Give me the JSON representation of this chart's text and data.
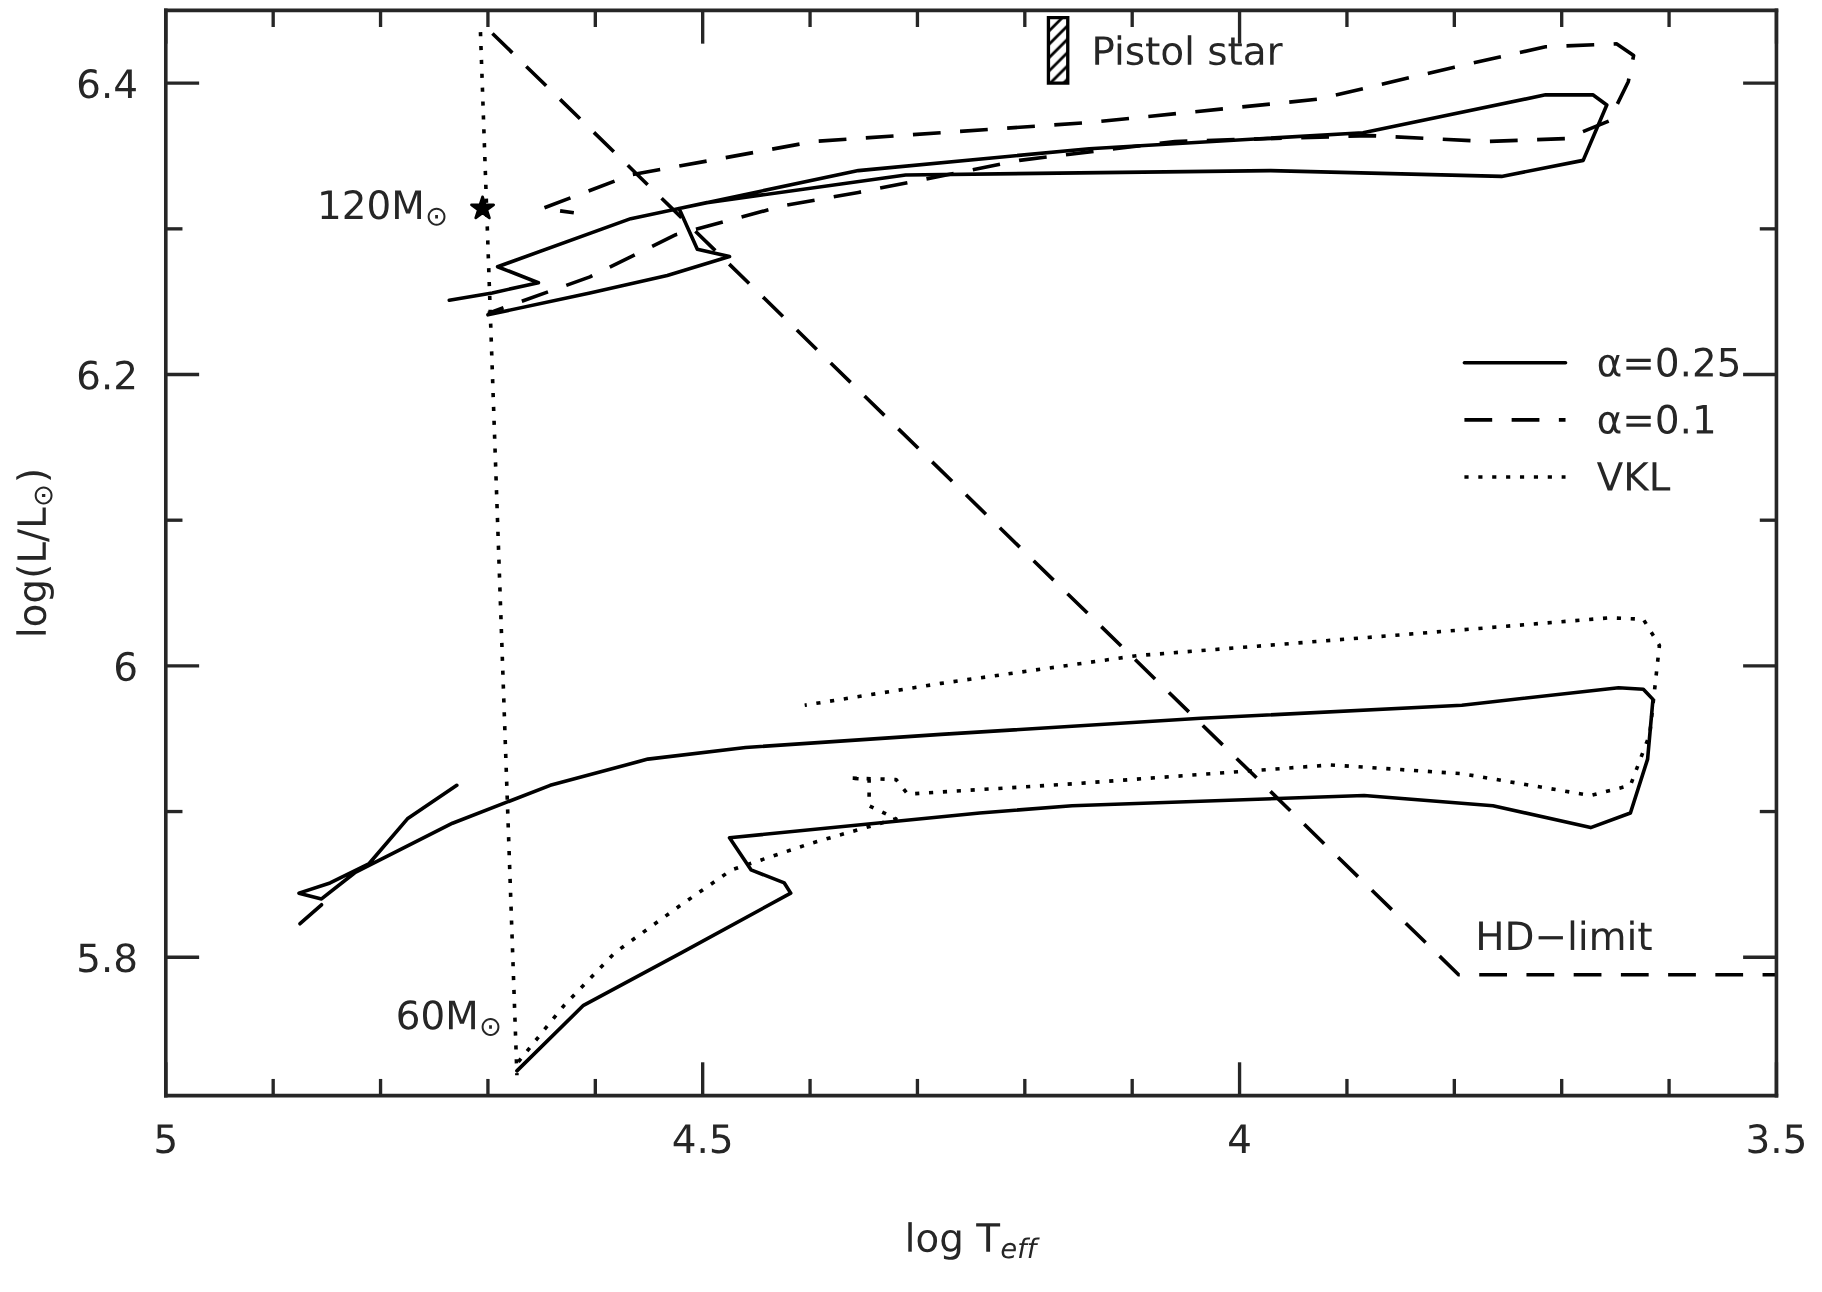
{
  "chart_data": {
    "type": "line",
    "xlabel": "log T$_{eff}$",
    "ylabel": "log(L/L$_{⊙}$)",
    "xlim": [
      5,
      3.5
    ],
    "ylim": [
      5.705,
      6.45
    ],
    "xticks": [
      5,
      4.5,
      4,
      3.5
    ],
    "yticks": [
      5.8,
      6,
      6.2,
      6.4
    ],
    "grid": false,
    "legend": "right",
    "series": [
      {
        "name": "α=0.25",
        "line_style": "solid",
        "color": "#000000",
        "x": [
          4.7,
          4.605,
          4.533,
          4.475,
          4.505,
          4.522,
          4.496,
          4.311,
          3.971,
          3.756,
          3.68,
          3.658,
          3.671,
          3.715,
          3.885,
          4.14,
          4.355,
          4.567,
          4.691,
          4.653,
          4.696,
          4.736
        ],
        "values": [
          6.241,
          6.256,
          6.268,
          6.281,
          6.286,
          6.314,
          6.318,
          6.337,
          6.34,
          6.336,
          6.347,
          6.385,
          6.392,
          6.392,
          6.366,
          6.355,
          6.34,
          6.307,
          6.274,
          6.263,
          6.256,
          6.251
        ]
      },
      {
        "name": "α=0.1",
        "line_style": "dashed",
        "color": "#000000",
        "x": [
          4.7,
          4.605,
          4.525,
          4.424,
          4.355,
          4.205,
          4.06,
          3.878,
          3.769,
          3.696,
          3.656,
          3.638,
          3.633,
          3.649,
          3.715,
          3.8,
          3.927,
          4.14,
          4.396,
          4.567,
          4.649,
          4.62
        ],
        "values": [
          6.242,
          6.267,
          6.296,
          6.316,
          6.325,
          6.347,
          6.36,
          6.364,
          6.36,
          6.362,
          6.374,
          6.401,
          6.419,
          6.427,
          6.425,
          6.411,
          6.389,
          6.373,
          6.36,
          6.337,
          6.314,
          6.311
        ]
      },
      {
        "name": "VKL",
        "line_style": "dotted",
        "color": "#000000",
        "x": [
          4.673,
          4.629,
          4.582,
          4.52,
          4.473,
          4.4,
          4.32,
          4.345,
          4.345,
          4.364,
          4.32,
          4.309,
          4.156,
          3.915,
          3.793,
          3.673,
          3.636,
          3.618,
          3.609,
          3.624,
          3.655,
          3.855,
          4.096,
          4.278,
          4.405
        ],
        "values": [
          5.727,
          5.767,
          5.803,
          5.836,
          5.86,
          5.878,
          5.895,
          5.904,
          5.922,
          5.923,
          5.922,
          5.912,
          5.919,
          5.932,
          5.926,
          5.911,
          5.918,
          5.953,
          6.014,
          6.032,
          6.033,
          6.021,
          6.007,
          5.988,
          5.973
        ]
      },
      {
        "type": "line",
        "line_style": "solid",
        "color": "#000000",
        "x": [
          4.673,
          4.611,
          4.52,
          4.418,
          4.424,
          4.455,
          4.475,
          4.242,
          4.156,
          3.884,
          3.764,
          3.673,
          3.636,
          3.62,
          3.615,
          3.624,
          3.647,
          3.793,
          4.036,
          4.278,
          4.46,
          4.551,
          4.642,
          4.733,
          4.824,
          4.855,
          4.876,
          4.847,
          4.811,
          4.775,
          4.729,
          null,
          4.875,
          4.855
        ],
        "values": [
          5.722,
          5.767,
          5.803,
          5.844,
          5.851,
          5.86,
          5.882,
          5.899,
          5.904,
          5.911,
          5.904,
          5.889,
          5.899,
          5.936,
          5.977,
          5.984,
          5.985,
          5.973,
          5.964,
          5.953,
          5.944,
          5.936,
          5.918,
          5.892,
          5.858,
          5.84,
          5.844,
          5.851,
          5.864,
          5.895,
          5.918,
          null,
          5.823,
          5.836
        ]
      },
      {
        "type": "line",
        "line_style": "dotted",
        "color": "#000000",
        "x": [
          4.707,
          4.673
        ],
        "values": [
          6.436,
          5.719
        ]
      },
      {
        "type": "line",
        "line_style": "dashed",
        "color": "#000000",
        "x": [
          4.704,
          3.796,
          3.5
        ],
        "values": [
          6.44,
          5.788,
          5.788
        ]
      },
      {
        "type": "scatter",
        "marker": "star",
        "color": "#000000",
        "x": [
          4.705
        ],
        "values": [
          6.314
        ]
      },
      {
        "type": "bar",
        "color": "#000000",
        "x": [
          4.169
        ],
        "base": [
          6.4
        ],
        "values": [
          0.045
        ]
      }
    ],
    "annotations": [
      {
        "text": "120M$_{⊙}$",
        "x": 4.705,
        "y": 6.314
      },
      {
        "text": "60M$_{⊙}$",
        "x": 4.673,
        "y": 5.722
      },
      {
        "text": "HD−limit",
        "x": 3.796,
        "y": 5.788
      },
      {
        "text": "Pistol star",
        "x": 4.169,
        "y": 6.42
      }
    ]
  }
}
